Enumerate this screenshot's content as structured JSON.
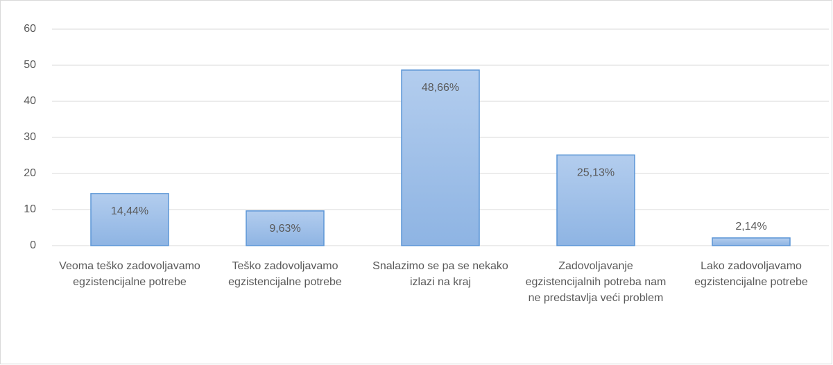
{
  "chart_data": {
    "type": "bar",
    "categories": [
      "Veoma teško zadovoljavamo egzistencijalne potrebe",
      "Teško zadovoljavamo egzistencijalne potrebe",
      "Snalazimo se pa se nekako izlazi na kraj",
      "Zadovoljavanje egzistencijalnih potreba nam ne predstavlja veći problem",
      "Lako zadovoljavamo egzistencijalne potrebe"
    ],
    "values": [
      14.44,
      9.63,
      48.66,
      25.13,
      2.14
    ],
    "value_labels": [
      "14,44%",
      "9,63%",
      "48,66%",
      "25,13%",
      "2,14%"
    ],
    "color": "#9dbfe8",
    "ylim": [
      0,
      60
    ],
    "yticks": [
      0,
      10,
      20,
      30,
      40,
      50,
      60
    ],
    "grid": true
  }
}
